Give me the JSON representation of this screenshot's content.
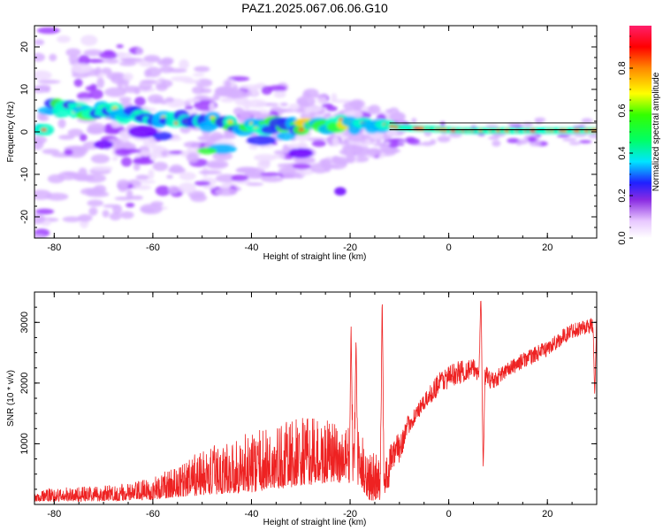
{
  "title": "PAZ1.2025.067.06.06.G10",
  "chart_data": [
    {
      "type": "heatmap",
      "xlabel": "Height of straight line (km)",
      "ylabel": "Frequency (Hz)",
      "xlim": [
        -84,
        30
      ],
      "ylim": [
        -25,
        25
      ],
      "xticks": [
        -80,
        -60,
        -40,
        -20,
        0,
        20
      ],
      "yticks": [
        -20,
        -10,
        0,
        10,
        20
      ],
      "colorbar": {
        "label": "Normalized spectral amplitude",
        "ticks": [
          0.0,
          0.2,
          0.4,
          0.6,
          0.8
        ],
        "tick_labels": [
          "0.0",
          "0.2",
          "0.4",
          "0.6",
          "0.8"
        ],
        "range": [
          0,
          1
        ]
      },
      "ridge": {
        "description_points": [
          [
            -82,
            6.0
          ],
          [
            -78,
            5.5
          ],
          [
            -74,
            5.0
          ],
          [
            -70,
            5.0
          ],
          [
            -66,
            4.2
          ],
          [
            -62,
            3.5
          ],
          [
            -58,
            3.0
          ],
          [
            -54,
            2.8
          ],
          [
            -50,
            2.5
          ],
          [
            -46,
            2.0
          ],
          [
            -42,
            1.5
          ],
          [
            -38,
            1.5
          ],
          [
            -34,
            1.3
          ],
          [
            -30,
            1.5
          ],
          [
            -26,
            1.5
          ],
          [
            -22,
            1.8
          ],
          [
            -18,
            2.0
          ],
          [
            -14,
            2.0
          ],
          [
            -10,
            1.0
          ],
          [
            -6,
            0.8
          ],
          [
            -2,
            0.6
          ],
          [
            2,
            0.3
          ],
          [
            6,
            0.3
          ],
          [
            10,
            0.3
          ],
          [
            14,
            0.3
          ],
          [
            18,
            0.3
          ],
          [
            22,
            0.3
          ],
          [
            26,
            0.3
          ],
          [
            30,
            0.3
          ]
        ]
      },
      "clean_tone_line": {
        "from_x": -12,
        "to_x": 30,
        "freq": 0.5
      }
    },
    {
      "type": "line",
      "xlabel": "Height of straight line (km)",
      "ylabel": "SNR (10 * v/v)",
      "xlim": [
        -84,
        30
      ],
      "ylim": [
        0,
        3500
      ],
      "xticks": [
        -80,
        -60,
        -40,
        -20,
        0,
        20
      ],
      "yticks": [
        1000,
        2000,
        3000
      ],
      "series": [
        {
          "color": "#ee2222",
          "envelope": {
            "x": [
              -84,
              -75,
              -65,
              -60,
              -55,
              -50,
              -45,
              -40,
              -35,
              -30,
              -25,
              -20,
              -18,
              -16,
              -14,
              -12,
              -10,
              -8,
              -5,
              -2,
              0,
              3,
              5,
              7,
              9,
              11,
              15,
              20,
              25,
              30
            ],
            "lower": [
              50,
              50,
              60,
              80,
              120,
              150,
              180,
              200,
              250,
              300,
              350,
              350,
              300,
              60,
              60,
              300,
              400,
              1000,
              1400,
              1600,
              1700,
              1800,
              1900,
              1800,
              1700,
              1900,
              2100,
              2300,
              2600,
              2700
            ],
            "upper": [
              250,
              300,
              350,
              450,
              650,
              900,
              1050,
              1200,
              1300,
              1450,
              1400,
              1300,
              1200,
              900,
              800,
              1000,
              1200,
              1500,
              1800,
              2200,
              2300,
              2400,
              2400,
              2300,
              2200,
              2300,
              2500,
              2700,
              3000,
              3100
            ]
          },
          "peaks": [
            {
              "x": -19.8,
              "y": 2950
            },
            {
              "x": -18.8,
              "y": 2750
            },
            {
              "x": -13.5,
              "y": 3500
            },
            {
              "x": 6.5,
              "y": 3450
            },
            {
              "x": 7.0,
              "y": 600
            },
            {
              "x": 29.6,
              "y": 1780
            }
          ]
        }
      ]
    }
  ]
}
